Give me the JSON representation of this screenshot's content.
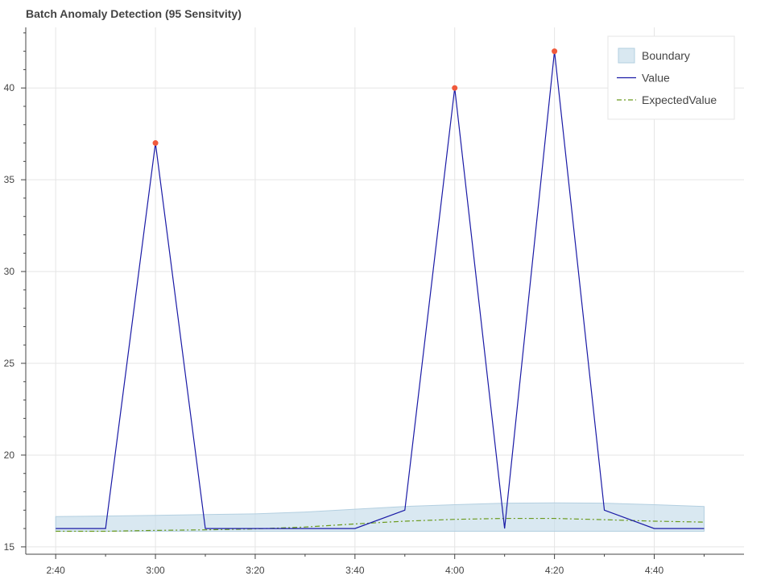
{
  "chart_data": {
    "type": "line",
    "title": "Batch Anomaly Detection (95 Sensitvity)",
    "xlabel": "",
    "ylabel": "",
    "x": [
      "2:40",
      "2:50",
      "3:00",
      "3:10",
      "3:20",
      "3:30",
      "3:40",
      "3:50",
      "4:00",
      "4:10",
      "4:20",
      "4:30",
      "4:40",
      "4:50"
    ],
    "x_tick_labels": [
      "2:40",
      "3:00",
      "3:20",
      "3:40",
      "4:00",
      "4:20",
      "4:40"
    ],
    "y_ticks": [
      15,
      20,
      25,
      30,
      35,
      40
    ],
    "ylim": [
      14.6,
      43.3
    ],
    "xlim": [
      "2:34",
      "4:58"
    ],
    "series": [
      {
        "name": "Value",
        "style": "line",
        "color": "#1a1aa6",
        "values": [
          16,
          16,
          37,
          16,
          16,
          16,
          16,
          17,
          40,
          16,
          42,
          17,
          16,
          16
        ]
      },
      {
        "name": "ExpectedValue",
        "style": "dashdot",
        "color": "#6b9a1e",
        "values": [
          15.85,
          15.85,
          15.9,
          15.93,
          15.98,
          16.08,
          16.25,
          16.4,
          16.5,
          16.55,
          16.55,
          16.48,
          16.4,
          16.35
        ]
      },
      {
        "name": "Boundary",
        "style": "band",
        "color": "#c5dcea",
        "lower": [
          15.85,
          15.85,
          15.85,
          15.85,
          15.85,
          15.85,
          15.85,
          15.85,
          15.85,
          15.85,
          15.85,
          15.85,
          15.85,
          15.85
        ],
        "upper": [
          16.65,
          16.68,
          16.72,
          16.76,
          16.8,
          16.9,
          17.05,
          17.2,
          17.3,
          17.38,
          17.4,
          17.38,
          17.3,
          17.2
        ]
      }
    ],
    "anomalies": {
      "color": "#f05a3c",
      "x": [
        "3:00",
        "4:00",
        "4:20"
      ],
      "values": [
        37,
        40,
        42
      ]
    },
    "legend": {
      "position": "top-right",
      "entries": [
        "Boundary",
        "Value",
        "ExpectedValue"
      ]
    },
    "grid": true
  }
}
